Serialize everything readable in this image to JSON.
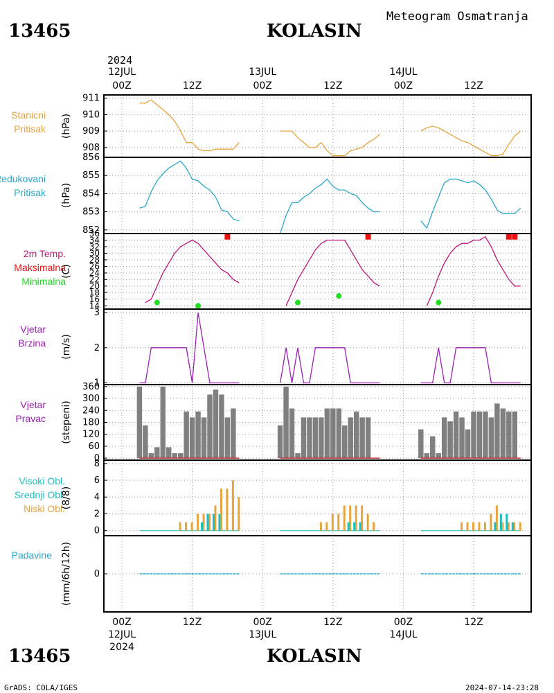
{
  "header": {
    "station_id": "13465",
    "station_name": "KOLASIN",
    "subtitle": "Meteogram Osmatranja",
    "top_year": "2024"
  },
  "footer": {
    "station_id": "13465",
    "station_name": "KOLASIN",
    "credit": "GrADS: COLA/IGES",
    "timestamp": "2024-07-14-23:28"
  },
  "time_axis": {
    "top_labels": [
      {
        "hour": "00Z",
        "date": "12JUL"
      },
      {
        "hour": "12Z",
        "date": ""
      },
      {
        "hour": "00Z",
        "date": "13JUL"
      },
      {
        "hour": "12Z",
        "date": ""
      },
      {
        "hour": "00Z",
        "date": "14JUL"
      },
      {
        "hour": "12Z",
        "date": ""
      }
    ],
    "bottom_labels": [
      {
        "hour": "00Z",
        "date": "12JUL"
      },
      {
        "hour": "12Z",
        "date": ""
      },
      {
        "hour": "00Z",
        "date": "13JUL"
      },
      {
        "hour": "12Z",
        "date": ""
      },
      {
        "hour": "00Z",
        "date": "14JUL"
      },
      {
        "hour": "12Z",
        "date": ""
      }
    ],
    "bottom_year": "2024"
  },
  "colors": {
    "pressure": "#e8a33c",
    "mslp": "#2aa7c9",
    "temp": "#c0157a",
    "tmax": "#ee1111",
    "tmin": "#22dd22",
    "wind": "#9b1fb5",
    "dir": "#808080",
    "high_cloud": "#1bbfbf",
    "mid_cloud": "#1bbfbf",
    "low_cloud": "#e8a33c",
    "precip": "#2aa7c9"
  },
  "panels": {
    "pressure": {
      "labels": [
        "Stanicni",
        "Pritisak"
      ],
      "unit": "(hPa)",
      "ticks": [
        "911",
        "910",
        "909",
        "908"
      ]
    },
    "mslp": {
      "labels": [
        "Redukovani",
        "Pritisak"
      ],
      "unit": "(hPa)",
      "ticks": [
        "856",
        "855",
        "854",
        "853",
        "852"
      ]
    },
    "temp": {
      "labels": [
        "2m Temp.",
        "Maksimalna",
        "Minimalna"
      ],
      "unit": "(C)",
      "ticks": [
        "36",
        "34",
        "32",
        "30",
        "28",
        "26",
        "24",
        "22",
        "20",
        "18",
        "16",
        "14"
      ]
    },
    "wind": {
      "labels": [
        "Vjetar",
        "Brzina"
      ],
      "unit": "(m/s)",
      "ticks": [
        "3",
        "2",
        "1"
      ]
    },
    "dir": {
      "labels": [
        "Vjetar",
        "Pravac"
      ],
      "unit": "(stepeni)",
      "ticks": [
        "360",
        "300",
        "240",
        "180",
        "120",
        "60",
        "0"
      ]
    },
    "cloud": {
      "labels": [
        "Visoki Obl.",
        "Srednji Obl.",
        "Niski Obl."
      ],
      "unit": "(8/8)",
      "ticks": [
        "8",
        "6",
        "4",
        "2",
        "0"
      ]
    },
    "precip": {
      "labels": [
        "Padavine"
      ],
      "unit": "(mm/6h/12h)",
      "ticks": [
        "0"
      ]
    }
  },
  "chart_data": {
    "type": "line",
    "x_unit": "hours since 12JUL 00Z",
    "pressure": [
      {
        "x": [
          3,
          4,
          5,
          6,
          7,
          8,
          9,
          10,
          11,
          12,
          13,
          14,
          15,
          16,
          17,
          18,
          19,
          20
        ],
        "y": [
          910.7,
          910.7,
          910.9,
          910.6,
          910.3,
          910.0,
          909.6,
          909.0,
          908.3,
          908.3,
          907.9,
          907.8,
          907.8,
          907.9,
          907.9,
          907.9,
          907.9,
          908.3
        ]
      },
      {
        "x": [
          27,
          28,
          29,
          30,
          31,
          32,
          33,
          34,
          35,
          36,
          37,
          38,
          39,
          40,
          41,
          42,
          43,
          44
        ],
        "y": [
          909.0,
          909.0,
          909.0,
          908.6,
          908.3,
          908.0,
          908.0,
          908.3,
          907.8,
          907.5,
          907.5,
          907.5,
          907.8,
          907.9,
          908.0,
          908.3,
          908.5,
          908.8
        ]
      },
      {
        "x": [
          51,
          52,
          53,
          54,
          55,
          56,
          57,
          58,
          59,
          60,
          61,
          62,
          63,
          64,
          65,
          66,
          67,
          68
        ],
        "y": [
          909.0,
          909.2,
          909.3,
          909.2,
          909.0,
          908.8,
          908.6,
          908.4,
          908.3,
          908.1,
          907.9,
          907.7,
          907.5,
          907.5,
          907.6,
          908.2,
          908.7,
          909.0
        ]
      }
    ],
    "mslp": [
      {
        "x": [
          3,
          4,
          5,
          6,
          7,
          8,
          9,
          10,
          11,
          12,
          13,
          14,
          15,
          16,
          17,
          18,
          19,
          20
        ],
        "y": [
          853.2,
          853.3,
          854.1,
          854.7,
          855.1,
          855.4,
          855.6,
          855.8,
          855.4,
          854.8,
          854.7,
          854.4,
          854.2,
          853.8,
          853.1,
          853.0,
          852.6,
          852.5
        ]
      },
      {
        "x": [
          27,
          28,
          29,
          30,
          31,
          32,
          33,
          34,
          35,
          36,
          37,
          38,
          39,
          40,
          41,
          42,
          43,
          44
        ],
        "y": [
          851.8,
          852.8,
          853.5,
          853.5,
          853.8,
          854.0,
          854.3,
          854.5,
          854.8,
          854.4,
          854.2,
          854.2,
          854.0,
          853.9,
          853.5,
          853.2,
          853.0,
          853.0
        ]
      },
      {
        "x": [
          51,
          52,
          53,
          54,
          55,
          56,
          57,
          58,
          59,
          60,
          61,
          62,
          63,
          64,
          65,
          66,
          67,
          68
        ],
        "y": [
          852.5,
          852.1,
          853.0,
          853.8,
          854.6,
          854.8,
          854.8,
          854.7,
          854.6,
          854.7,
          854.5,
          854.2,
          853.7,
          853.1,
          852.9,
          852.9,
          852.9,
          853.2
        ]
      }
    ],
    "temp": [
      {
        "x": [
          4,
          5,
          6,
          7,
          8,
          9,
          10,
          11,
          12,
          13,
          14,
          15,
          16,
          17,
          18,
          19,
          20
        ],
        "y": [
          15,
          16,
          20,
          24,
          27,
          30,
          32,
          33,
          34,
          33,
          31,
          29,
          27,
          25,
          24,
          22,
          21
        ]
      },
      {
        "x": [
          28,
          29,
          30,
          31,
          32,
          33,
          34,
          35,
          36,
          37,
          38,
          39,
          40,
          41,
          42,
          43,
          44
        ],
        "y": [
          14,
          18,
          22,
          25,
          28,
          31,
          33,
          34,
          34,
          34,
          34,
          31,
          28,
          25,
          23,
          21,
          20
        ]
      },
      {
        "x": [
          52,
          53,
          54,
          55,
          56,
          57,
          58,
          59,
          60,
          61,
          62,
          63,
          64,
          65,
          66,
          67,
          68
        ],
        "y": [
          14,
          18,
          23,
          27,
          30,
          32,
          33,
          33,
          34,
          34,
          35,
          32,
          28,
          25,
          22,
          20,
          20
        ]
      }
    ],
    "tmax": {
      "x": [
        18,
        42,
        66,
        67
      ],
      "y": [
        35,
        35,
        35,
        35
      ]
    },
    "tmin": {
      "x": [
        6,
        13,
        30,
        37,
        54
      ],
      "y": [
        15,
        14,
        15,
        17,
        15
      ]
    },
    "wind": [
      {
        "x": [
          3,
          4,
          5,
          6,
          7,
          8,
          9,
          10,
          11,
          12,
          13,
          14,
          15,
          16,
          17,
          18,
          19,
          20
        ],
        "y": [
          1,
          1,
          2,
          2,
          2,
          2,
          2,
          2,
          2,
          1,
          3,
          2,
          1,
          1,
          1,
          1,
          1,
          1
        ]
      },
      {
        "x": [
          27,
          28,
          29,
          30,
          31,
          32,
          33,
          34,
          35,
          36,
          37,
          38,
          39,
          40,
          41,
          42,
          43,
          44
        ],
        "y": [
          1,
          2,
          1,
          2,
          1,
          1,
          2,
          2,
          2,
          2,
          2,
          2,
          1,
          1,
          1,
          1,
          1,
          1
        ]
      },
      {
        "x": [
          51,
          52,
          53,
          54,
          55,
          56,
          57,
          58,
          59,
          60,
          61,
          62,
          63,
          64,
          65,
          66,
          67,
          68
        ],
        "y": [
          1,
          1,
          1,
          2,
          1,
          1,
          2,
          2,
          2,
          2,
          2,
          2,
          1,
          1,
          1,
          1,
          1,
          1
        ]
      }
    ],
    "dir": [
      {
        "x": [
          3,
          4,
          5,
          6,
          7,
          8,
          9,
          10,
          11,
          12,
          13,
          14,
          15,
          16,
          17,
          18,
          19,
          20
        ],
        "y": [
          360,
          165,
          25,
          55,
          360,
          55,
          25,
          25,
          235,
          205,
          235,
          205,
          320,
          345,
          320,
          205,
          250,
          0
        ]
      },
      {
        "x": [
          27,
          28,
          29,
          30,
          31,
          32,
          33,
          34,
          35,
          36,
          37,
          38,
          39,
          40,
          41,
          42,
          43,
          44
        ],
        "y": [
          165,
          360,
          250,
          25,
          205,
          205,
          205,
          205,
          250,
          250,
          250,
          165,
          205,
          235,
          205,
          205,
          0,
          0
        ]
      },
      {
        "x": [
          51,
          52,
          53,
          54,
          55,
          56,
          57,
          58,
          59,
          60,
          61,
          62,
          63,
          64,
          65,
          66,
          67,
          68
        ],
        "y": [
          145,
          25,
          110,
          25,
          205,
          185,
          235,
          205,
          145,
          235,
          235,
          235,
          205,
          275,
          250,
          235,
          235,
          0
        ]
      }
    ],
    "low_cloud": [
      {
        "x": [
          3,
          4,
          5,
          6,
          7,
          8,
          9,
          10,
          11,
          12,
          13,
          14,
          15,
          16,
          17,
          18,
          19,
          20
        ],
        "y": [
          0,
          0,
          0,
          0,
          0,
          0,
          0,
          1,
          1,
          1,
          2,
          2,
          2,
          3,
          5,
          5,
          6,
          4
        ]
      },
      {
        "x": [
          27,
          28,
          29,
          30,
          31,
          32,
          33,
          34,
          35,
          36,
          37,
          38,
          39,
          40,
          41,
          42,
          43,
          44
        ],
        "y": [
          0,
          0,
          0,
          0,
          0,
          0,
          0,
          1,
          1,
          2,
          2,
          3,
          3,
          3,
          3,
          2,
          1,
          0
        ]
      },
      {
        "x": [
          51,
          52,
          53,
          54,
          55,
          56,
          57,
          58,
          59,
          60,
          61,
          62,
          63,
          64,
          65,
          66,
          67,
          68
        ],
        "y": [
          0,
          0,
          0,
          0,
          0,
          0,
          0,
          1,
          1,
          1,
          1,
          1,
          2,
          3,
          1,
          1,
          1,
          1
        ]
      }
    ],
    "mid_cloud": [
      {
        "x": [
          3,
          4,
          5,
          6,
          7,
          8,
          9,
          10,
          11,
          12,
          13,
          14,
          15,
          16,
          17,
          18,
          19,
          20
        ],
        "y": [
          0,
          0,
          0,
          0,
          0,
          0,
          0,
          0,
          0,
          0,
          0,
          1,
          2,
          2,
          2,
          0,
          0,
          0
        ]
      },
      {
        "x": [
          27,
          28,
          29,
          30,
          31,
          32,
          33,
          34,
          35,
          36,
          37,
          38,
          39,
          40,
          41,
          42,
          43,
          44
        ],
        "y": [
          0,
          0,
          0,
          0,
          0,
          0,
          0,
          0,
          0,
          0,
          0,
          0,
          1,
          1,
          1,
          0,
          0,
          0
        ]
      },
      {
        "x": [
          51,
          52,
          53,
          54,
          55,
          56,
          57,
          58,
          59,
          60,
          61,
          62,
          63,
          64,
          65,
          66,
          67,
          68
        ],
        "y": [
          0,
          0,
          0,
          0,
          0,
          0,
          0,
          0,
          0,
          0,
          0,
          0,
          0,
          1,
          2,
          2,
          1,
          0
        ]
      }
    ],
    "precip": [
      {
        "x": [
          3,
          20
        ],
        "y": [
          0,
          0
        ]
      },
      {
        "x": [
          27,
          44
        ],
        "y": [
          0,
          0
        ]
      },
      {
        "x": [
          51,
          68
        ],
        "y": [
          0,
          0
        ]
      }
    ]
  }
}
